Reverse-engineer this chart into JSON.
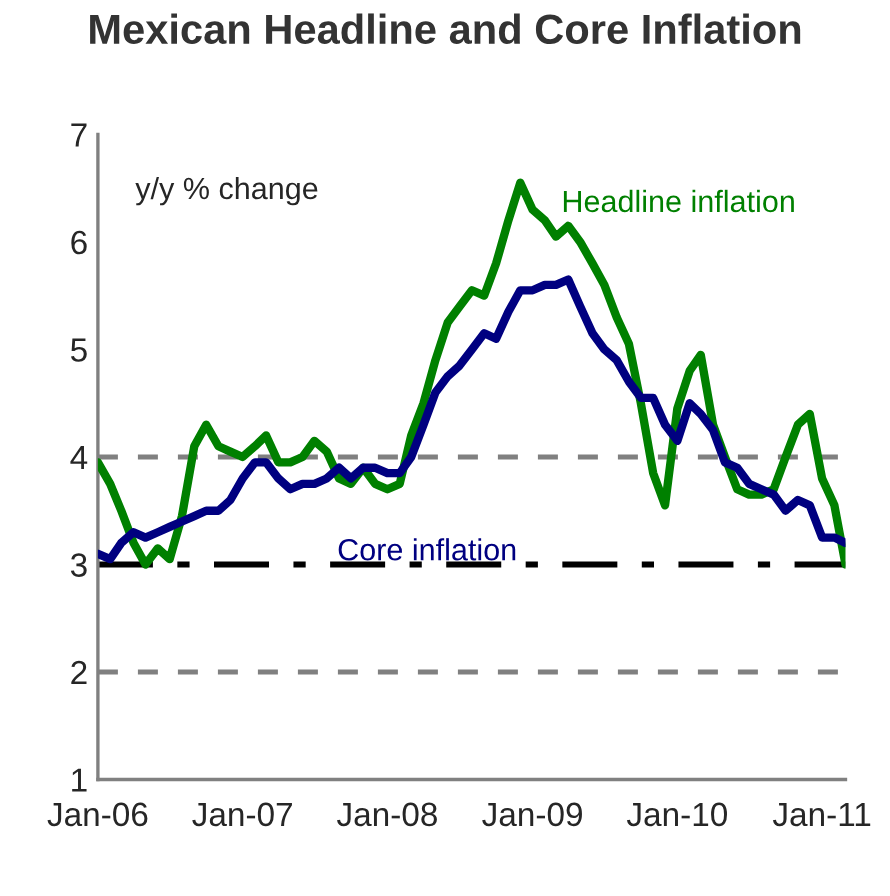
{
  "chart_data": {
    "type": "line",
    "title": "Mexican Headline and Core Inflation",
    "annotations": [
      "y/y % change"
    ],
    "x": [
      "2006-01",
      "2006-02",
      "2006-03",
      "2006-04",
      "2006-05",
      "2006-06",
      "2006-07",
      "2006-08",
      "2006-09",
      "2006-10",
      "2006-11",
      "2006-12",
      "2007-01",
      "2007-02",
      "2007-03",
      "2007-04",
      "2007-05",
      "2007-06",
      "2007-07",
      "2007-08",
      "2007-09",
      "2007-10",
      "2007-11",
      "2007-12",
      "2008-01",
      "2008-02",
      "2008-03",
      "2008-04",
      "2008-05",
      "2008-06",
      "2008-07",
      "2008-08",
      "2008-09",
      "2008-10",
      "2008-11",
      "2008-12",
      "2009-01",
      "2009-02",
      "2009-03",
      "2009-04",
      "2009-05",
      "2009-06",
      "2009-07",
      "2009-08",
      "2009-09",
      "2009-10",
      "2009-11",
      "2009-12",
      "2010-01",
      "2010-02",
      "2010-03",
      "2010-04",
      "2010-05",
      "2010-06",
      "2010-07",
      "2010-08",
      "2010-09",
      "2010-10",
      "2010-11",
      "2010-12",
      "2011-01",
      "2011-02",
      "2011-03"
    ],
    "series": [
      {
        "name": "Headline inflation",
        "color": "#008000",
        "values": [
          3.95,
          3.75,
          3.5,
          3.2,
          3.0,
          3.15,
          3.05,
          3.45,
          4.1,
          4.3,
          4.1,
          4.05,
          4.0,
          4.1,
          4.2,
          3.95,
          3.95,
          4.0,
          4.15,
          4.05,
          3.8,
          3.75,
          3.9,
          3.75,
          3.7,
          3.75,
          4.2,
          4.5,
          4.9,
          5.25,
          5.4,
          5.55,
          5.5,
          5.8,
          6.2,
          6.55,
          6.3,
          6.2,
          6.05,
          6.15,
          6.0,
          5.8,
          5.6,
          5.3,
          5.05,
          4.5,
          3.85,
          3.55,
          4.45,
          4.8,
          4.95,
          4.3,
          4.0,
          3.7,
          3.65,
          3.65,
          3.7,
          4.0,
          4.3,
          4.4,
          3.8,
          3.55,
          3.0
        ]
      },
      {
        "name": "Core inflation",
        "color": "#000080",
        "values": [
          3.1,
          3.05,
          3.2,
          3.3,
          3.25,
          3.3,
          3.35,
          3.4,
          3.45,
          3.5,
          3.5,
          3.6,
          3.8,
          3.95,
          3.95,
          3.8,
          3.7,
          3.75,
          3.75,
          3.8,
          3.9,
          3.8,
          3.9,
          3.9,
          3.85,
          3.85,
          4.0,
          4.3,
          4.6,
          4.75,
          4.85,
          5.0,
          5.15,
          5.1,
          5.35,
          5.55,
          5.55,
          5.6,
          5.6,
          5.65,
          5.4,
          5.15,
          5.0,
          4.9,
          4.7,
          4.55,
          4.55,
          4.3,
          4.15,
          4.5,
          4.4,
          4.25,
          3.95,
          3.9,
          3.75,
          3.7,
          3.65,
          3.5,
          3.6,
          3.55,
          3.25,
          3.25,
          3.2
        ]
      }
    ],
    "ref_lines": [
      {
        "axis": "y",
        "value": 4,
        "color": "#808080",
        "line_style": "dashed"
      },
      {
        "axis": "y",
        "value": 3,
        "color": "#000000",
        "line_style": "dashdot"
      },
      {
        "axis": "y",
        "value": 2,
        "color": "#808080",
        "line_style": "dashed"
      }
    ],
    "xlim": [
      "2006-01",
      "2011-03"
    ],
    "xticks": [
      {
        "value": "2006-01",
        "label": "Jan-06"
      },
      {
        "value": "2007-01",
        "label": "Jan-07"
      },
      {
        "value": "2008-01",
        "label": "Jan-08"
      },
      {
        "value": "2009-01",
        "label": "Jan-09"
      },
      {
        "value": "2010-01",
        "label": "Jan-10"
      },
      {
        "value": "2011-01",
        "label": "Jan-11"
      }
    ],
    "ylim": [
      1,
      7
    ],
    "yticks": [
      1,
      2,
      3,
      4,
      5,
      6,
      7
    ],
    "grid": false,
    "legend": false,
    "marker": "none",
    "line_style": "solid"
  }
}
